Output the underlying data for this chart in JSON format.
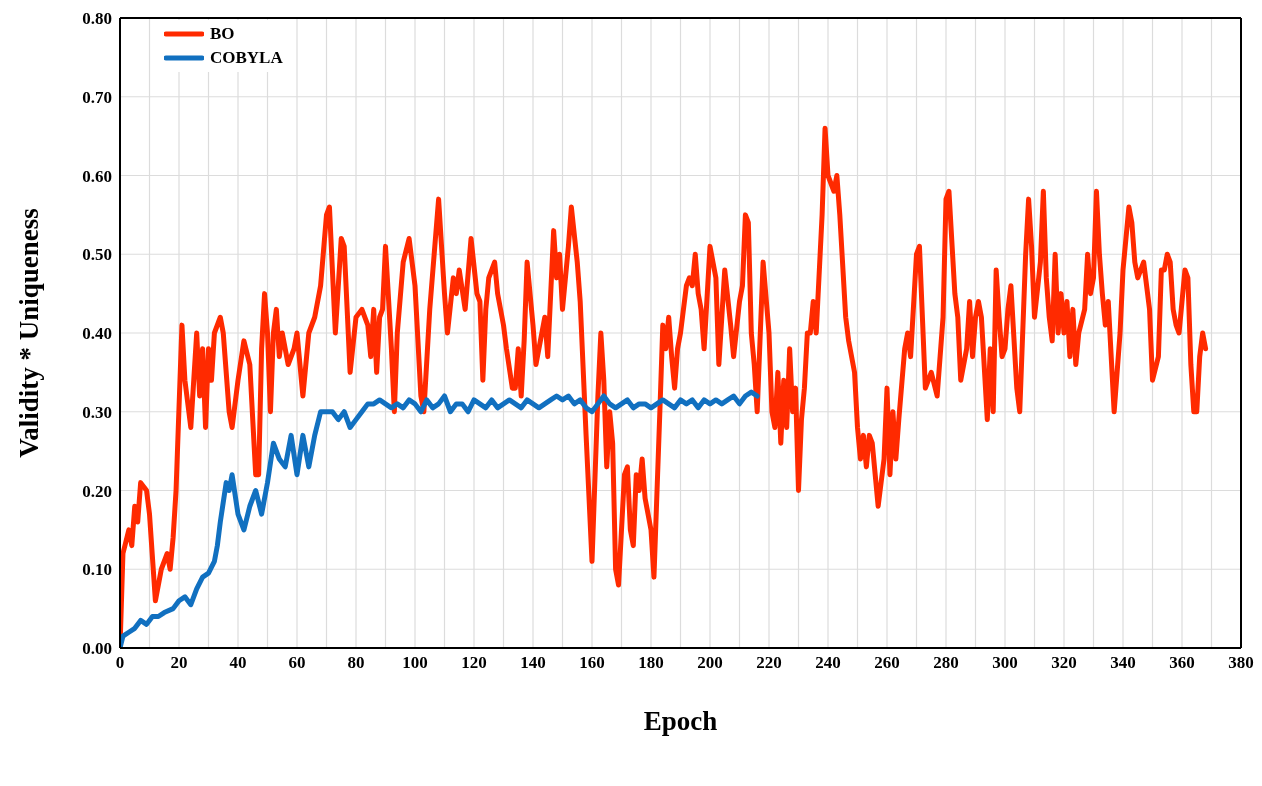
{
  "chart_data": {
    "type": "line",
    "xlabel": "Epoch",
    "ylabel": "Validity * Uniqueness",
    "xlim": [
      0,
      380
    ],
    "xticks": [
      0,
      {
        "value": 10,
        "label": null
      },
      20,
      {
        "value": 30,
        "label": null
      },
      40,
      {
        "value": 50,
        "label": null
      },
      60,
      {
        "value": 70,
        "label": null
      },
      80,
      {
        "value": 90,
        "label": null
      },
      100,
      {
        "value": 110,
        "label": null
      },
      120,
      {
        "value": 130,
        "label": null
      },
      140,
      {
        "value": 150,
        "label": null
      },
      160,
      {
        "value": 170,
        "label": null
      },
      180,
      {
        "value": 190,
        "label": null
      },
      200,
      {
        "value": 210,
        "label": null
      },
      220,
      {
        "value": 230,
        "label": null
      },
      240,
      {
        "value": 250,
        "label": null
      },
      260,
      {
        "value": 270,
        "label": null
      },
      280,
      {
        "value": 290,
        "label": null
      },
      300,
      {
        "value": 310,
        "label": null
      },
      320,
      {
        "value": 330,
        "label": null
      },
      340,
      {
        "value": 350,
        "label": null
      },
      360,
      {
        "value": 370,
        "label": null
      },
      380
    ],
    "ylim": [
      0,
      0.8
    ],
    "yticks": [
      {
        "value": 0,
        "label": "0.00"
      },
      {
        "value": 0.1,
        "label": "0.10"
      },
      {
        "value": 0.2,
        "label": "0.20"
      },
      {
        "value": 0.3,
        "label": "0.30"
      },
      {
        "value": 0.4,
        "label": "0.40"
      },
      {
        "value": 0.5,
        "label": "0.50"
      },
      {
        "value": 0.6,
        "label": "0.60"
      },
      {
        "value": 0.7,
        "label": "0.70"
      },
      {
        "value": 0.8,
        "label": "0.80"
      }
    ],
    "grid": true,
    "legend": "top left",
    "marker": "none",
    "line_style": "solid",
    "series": [
      {
        "name": "BO",
        "color": "#ff2a00",
        "x": [
          0,
          1,
          3,
          4,
          5,
          6,
          7,
          9,
          10,
          12,
          14,
          16,
          17,
          18,
          19,
          21,
          22,
          24,
          26,
          27,
          28,
          29,
          30,
          31,
          32,
          34,
          35,
          37,
          38,
          40,
          42,
          44,
          46,
          47,
          48,
          49,
          50,
          51,
          52,
          53,
          54,
          55,
          57,
          59,
          60,
          62,
          64,
          66,
          68,
          70,
          71,
          73,
          75,
          76,
          78,
          80,
          82,
          84,
          85,
          86,
          87,
          88,
          89,
          90,
          92,
          93,
          94,
          96,
          98,
          100,
          102,
          103,
          105,
          108,
          110,
          111,
          113,
          114,
          115,
          117,
          119,
          121,
          122,
          123,
          124,
          125,
          127,
          128,
          130,
          131,
          133,
          134,
          135,
          136,
          137,
          138,
          140,
          141,
          143,
          144,
          145,
          147,
          148,
          149,
          150,
          152,
          153,
          155,
          156,
          158,
          160,
          162,
          163,
          164,
          165,
          166,
          167,
          168,
          169,
          171,
          172,
          173,
          174,
          175,
          176,
          177,
          178,
          180,
          181,
          183,
          184,
          185,
          186,
          187,
          188,
          189,
          190,
          192,
          193,
          194,
          195,
          196,
          197,
          198,
          200,
          202,
          203,
          205,
          207,
          208,
          210,
          211,
          212,
          213,
          214,
          215,
          216,
          218,
          220,
          221,
          222,
          223,
          224,
          225,
          226,
          227,
          228,
          229,
          230,
          231,
          232,
          233,
          234,
          235,
          236,
          238,
          239,
          240,
          242,
          243,
          244,
          246,
          247,
          249,
          250,
          251,
          252,
          253,
          254,
          255,
          257,
          259,
          260,
          261,
          262,
          263,
          264,
          266,
          267,
          268,
          270,
          271,
          273,
          274,
          275,
          277,
          279,
          280,
          281,
          283,
          284,
          285,
          287,
          288,
          289,
          290,
          291,
          292,
          294,
          295,
          296,
          297,
          298,
          299,
          300,
          301,
          302,
          304,
          305,
          307,
          308,
          309,
          310,
          312,
          313,
          314,
          315,
          316,
          317,
          318,
          319,
          320,
          321,
          322,
          323,
          324,
          325,
          327,
          328,
          329,
          330,
          331,
          332,
          333,
          334,
          335,
          337,
          339,
          340,
          342,
          343,
          344,
          345,
          347,
          349,
          350,
          352,
          353,
          354,
          355,
          356,
          357,
          358,
          359,
          360,
          361,
          362,
          363,
          364,
          365,
          366,
          367,
          368
        ],
        "values": [
          0,
          0.12,
          0.15,
          0.13,
          0.18,
          0.16,
          0.21,
          0.2,
          0.17,
          0.06,
          0.1,
          0.12,
          0.1,
          0.14,
          0.2,
          0.41,
          0.34,
          0.28,
          0.4,
          0.32,
          0.38,
          0.28,
          0.38,
          0.34,
          0.4,
          0.42,
          0.4,
          0.3,
          0.28,
          0.34,
          0.39,
          0.36,
          0.22,
          0.22,
          0.38,
          0.45,
          0.4,
          0.3,
          0.4,
          0.43,
          0.37,
          0.4,
          0.36,
          0.38,
          0.4,
          0.32,
          0.4,
          0.42,
          0.46,
          0.55,
          0.56,
          0.4,
          0.52,
          0.51,
          0.35,
          0.42,
          0.43,
          0.41,
          0.37,
          0.43,
          0.35,
          0.42,
          0.43,
          0.51,
          0.38,
          0.3,
          0.4,
          0.49,
          0.52,
          0.46,
          0.32,
          0.3,
          0.43,
          0.57,
          0.45,
          0.4,
          0.47,
          0.45,
          0.48,
          0.43,
          0.52,
          0.45,
          0.44,
          0.34,
          0.43,
          0.47,
          0.49,
          0.45,
          0.41,
          0.38,
          0.33,
          0.33,
          0.38,
          0.32,
          0.39,
          0.49,
          0.41,
          0.36,
          0.4,
          0.42,
          0.37,
          0.53,
          0.47,
          0.5,
          0.43,
          0.51,
          0.56,
          0.49,
          0.44,
          0.27,
          0.11,
          0.32,
          0.4,
          0.34,
          0.23,
          0.3,
          0.26,
          0.1,
          0.08,
          0.22,
          0.23,
          0.15,
          0.13,
          0.22,
          0.2,
          0.24,
          0.19,
          0.15,
          0.09,
          0.3,
          0.41,
          0.38,
          0.42,
          0.37,
          0.33,
          0.38,
          0.4,
          0.46,
          0.47,
          0.46,
          0.5,
          0.45,
          0.43,
          0.38,
          0.51,
          0.47,
          0.36,
          0.48,
          0.41,
          0.37,
          0.44,
          0.46,
          0.55,
          0.54,
          0.4,
          0.36,
          0.3,
          0.49,
          0.4,
          0.3,
          0.28,
          0.35,
          0.26,
          0.34,
          0.28,
          0.38,
          0.3,
          0.33,
          0.2,
          0.29,
          0.33,
          0.4,
          0.4,
          0.44,
          0.4,
          0.55,
          0.66,
          0.6,
          0.58,
          0.6,
          0.55,
          0.42,
          0.39,
          0.35,
          0.28,
          0.24,
          0.27,
          0.23,
          0.27,
          0.26,
          0.18,
          0.24,
          0.33,
          0.22,
          0.3,
          0.24,
          0.29,
          0.38,
          0.4,
          0.37,
          0.5,
          0.51,
          0.33,
          0.34,
          0.35,
          0.32,
          0.42,
          0.57,
          0.58,
          0.45,
          0.42,
          0.34,
          0.38,
          0.44,
          0.37,
          0.42,
          0.44,
          0.42,
          0.29,
          0.38,
          0.3,
          0.48,
          0.42,
          0.37,
          0.38,
          0.43,
          0.46,
          0.33,
          0.3,
          0.5,
          0.57,
          0.51,
          0.42,
          0.49,
          0.58,
          0.47,
          0.42,
          0.39,
          0.5,
          0.4,
          0.45,
          0.4,
          0.44,
          0.37,
          0.43,
          0.36,
          0.4,
          0.43,
          0.5,
          0.45,
          0.47,
          0.58,
          0.5,
          0.45,
          0.41,
          0.44,
          0.3,
          0.4,
          0.48,
          0.56,
          0.54,
          0.49,
          0.47,
          0.49,
          0.43,
          0.34,
          0.37,
          0.48,
          0.48,
          0.5,
          0.49,
          0.43,
          0.41,
          0.4,
          0.44,
          0.48,
          0.47,
          0.36,
          0.3,
          0.3,
          0.37,
          0.4,
          0.38
        ]
      },
      {
        "name": "COBYLA",
        "color": "#1170c0",
        "x": [
          0,
          1,
          3,
          5,
          7,
          9,
          11,
          13,
          15,
          18,
          20,
          22,
          24,
          26,
          28,
          30,
          32,
          33,
          34,
          36,
          37,
          38,
          40,
          42,
          44,
          46,
          48,
          50,
          52,
          54,
          56,
          58,
          60,
          62,
          64,
          66,
          68,
          70,
          72,
          74,
          76,
          78,
          80,
          82,
          84,
          86,
          88,
          90,
          92,
          94,
          96,
          98,
          100,
          102,
          104,
          106,
          108,
          110,
          112,
          114,
          116,
          118,
          120,
          122,
          124,
          126,
          128,
          130,
          132,
          134,
          136,
          138,
          140,
          142,
          144,
          146,
          148,
          150,
          152,
          154,
          156,
          158,
          160,
          162,
          164,
          166,
          168,
          170,
          172,
          174,
          176,
          178,
          180,
          182,
          184,
          186,
          188,
          190,
          192,
          194,
          196,
          198,
          200,
          202,
          204,
          206,
          208,
          210,
          212,
          214,
          216
        ],
        "values": [
          0,
          0.015,
          0.02,
          0.025,
          0.035,
          0.03,
          0.04,
          0.04,
          0.045,
          0.05,
          0.06,
          0.065,
          0.055,
          0.075,
          0.09,
          0.095,
          0.11,
          0.13,
          0.16,
          0.21,
          0.2,
          0.22,
          0.17,
          0.15,
          0.18,
          0.2,
          0.17,
          0.21,
          0.26,
          0.24,
          0.23,
          0.27,
          0.22,
          0.27,
          0.23,
          0.27,
          0.3,
          0.3,
          0.3,
          0.29,
          0.3,
          0.28,
          0.29,
          0.3,
          0.31,
          0.31,
          0.315,
          0.31,
          0.305,
          0.31,
          0.305,
          0.315,
          0.31,
          0.3,
          0.315,
          0.305,
          0.31,
          0.32,
          0.3,
          0.31,
          0.31,
          0.3,
          0.315,
          0.31,
          0.305,
          0.315,
          0.305,
          0.31,
          0.315,
          0.31,
          0.305,
          0.315,
          0.31,
          0.305,
          0.31,
          0.315,
          0.32,
          0.315,
          0.32,
          0.31,
          0.315,
          0.305,
          0.3,
          0.31,
          0.32,
          0.31,
          0.305,
          0.31,
          0.315,
          0.305,
          0.31,
          0.31,
          0.305,
          0.31,
          0.315,
          0.31,
          0.305,
          0.315,
          0.31,
          0.315,
          0.305,
          0.315,
          0.31,
          0.315,
          0.31,
          0.315,
          0.32,
          0.31,
          0.32,
          0.325,
          0.32
        ]
      }
    ]
  }
}
